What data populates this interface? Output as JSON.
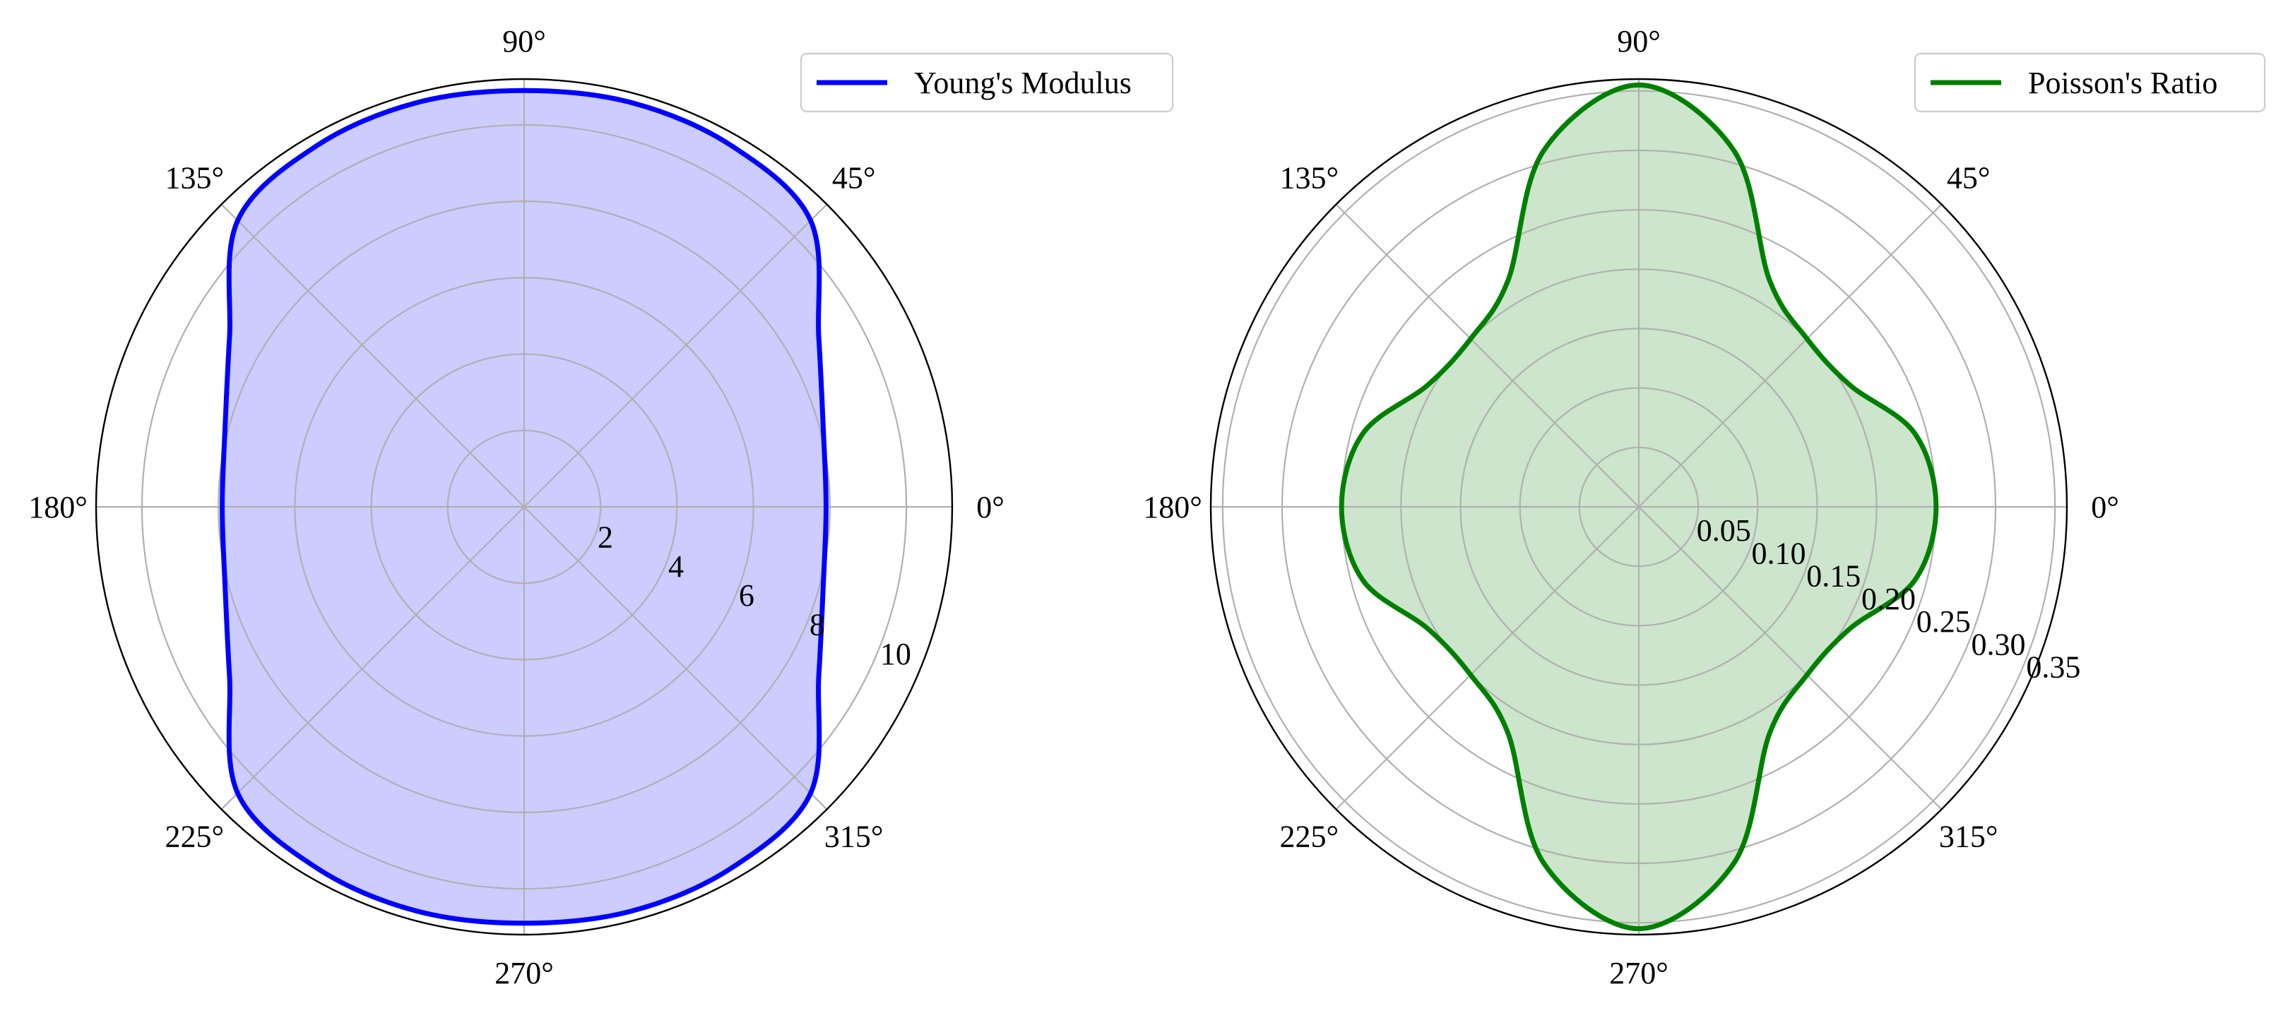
{
  "chart_data": [
    {
      "type": "polar",
      "title": "",
      "angle_unit": "degrees",
      "angle_labels": [
        "0°",
        "45°",
        "90°",
        "135°",
        "180°",
        "225°",
        "270°",
        "315°"
      ],
      "radial_ticks": [
        2,
        4,
        6,
        8,
        10
      ],
      "radial_tick_labels": [
        "2",
        "4",
        "6",
        "8",
        "10"
      ],
      "rlim": [
        0,
        11.2
      ],
      "grid": true,
      "legend_position": "top-right",
      "series": [
        {
          "name": "Young's Modulus",
          "color": "#0000ff",
          "fill_color": "#ccccff",
          "theta_deg": [
            0,
            15,
            30,
            45,
            60,
            75,
            90,
            105,
            120,
            135,
            150,
            165,
            180,
            195,
            210,
            225,
            240,
            255,
            270,
            285,
            300,
            315,
            330,
            345
          ],
          "r": [
            7.9,
            8.1,
            8.9,
            10.6,
            10.9,
            10.95,
            10.9,
            10.95,
            10.9,
            10.6,
            8.9,
            8.1,
            7.9,
            8.1,
            8.9,
            10.6,
            10.9,
            10.95,
            10.9,
            10.95,
            10.9,
            10.6,
            8.9,
            8.1
          ]
        }
      ]
    },
    {
      "type": "polar",
      "title": "",
      "angle_unit": "degrees",
      "angle_labels": [
        "0°",
        "45°",
        "90°",
        "135°",
        "180°",
        "225°",
        "270°",
        "315°"
      ],
      "radial_ticks": [
        0.05,
        0.1,
        0.15,
        0.2,
        0.25,
        0.3,
        0.35
      ],
      "radial_tick_labels": [
        "0.05",
        "0.10",
        "0.15",
        "0.20",
        "0.25",
        "0.30",
        "0.35"
      ],
      "rlim": [
        0,
        0.36
      ],
      "grid": true,
      "legend_position": "top-right",
      "series": [
        {
          "name": "Poisson's Ratio",
          "color": "#008000",
          "fill_color": "#cce5cc",
          "theta_deg": [
            0,
            15,
            30,
            45,
            60,
            75,
            90,
            105,
            120,
            135,
            150,
            165,
            180,
            195,
            210,
            225,
            240,
            255,
            270,
            285,
            300,
            315,
            330,
            345
          ],
          "r": [
            0.25,
            0.24,
            0.205,
            0.2,
            0.22,
            0.31,
            0.355,
            0.31,
            0.22,
            0.2,
            0.205,
            0.24,
            0.25,
            0.24,
            0.205,
            0.2,
            0.22,
            0.31,
            0.355,
            0.31,
            0.22,
            0.2,
            0.205,
            0.24
          ]
        }
      ]
    }
  ]
}
